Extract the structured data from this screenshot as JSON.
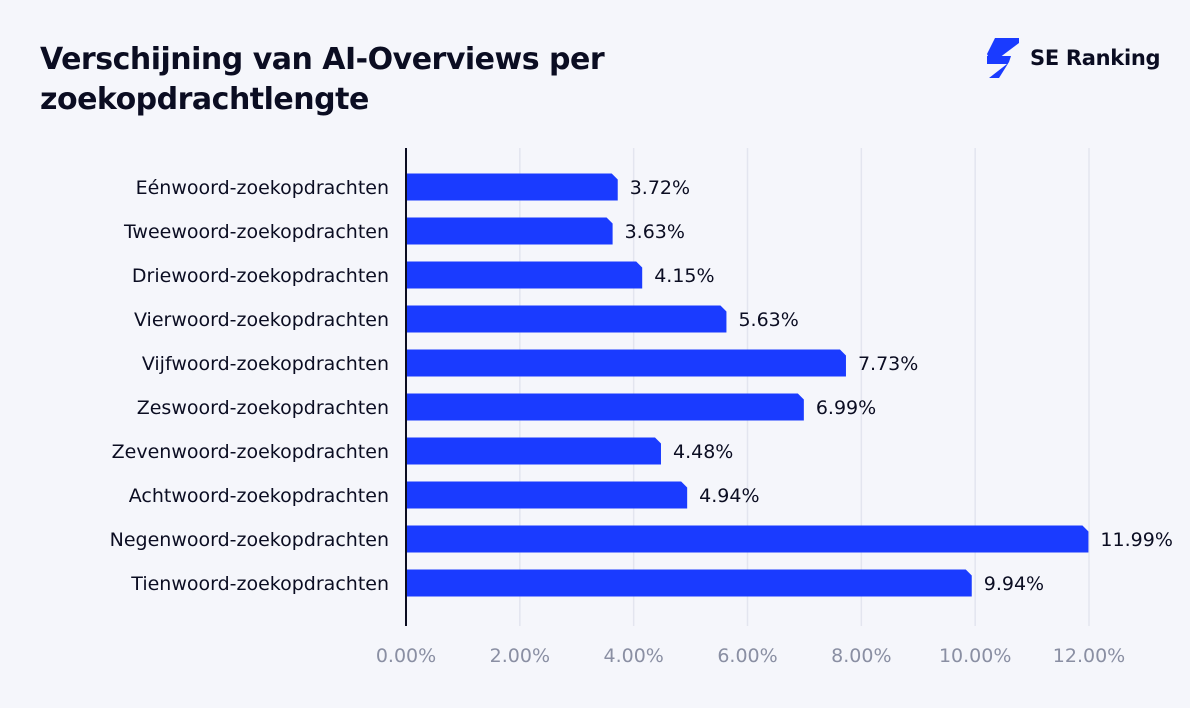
{
  "brand": {
    "name": "SE Ranking",
    "logo_icon": "se-ranking-bolt-icon",
    "logo_color": "#1a3bff"
  },
  "chart_data": {
    "type": "bar",
    "orientation": "horizontal",
    "title": "Verschijning van AI-Overviews per zoekopdrachtlengte",
    "xlabel": "",
    "ylabel": "",
    "categories": [
      "Eénwoord-zoekopdrachten",
      "Tweewoord-zoekopdrachten",
      "Driewoord-zoekopdrachten",
      "Vierwoord-zoekopdrachten",
      "Vijfwoord-zoekopdrachten",
      "Zeswoord-zoekopdrachten",
      "Zevenwoord-zoekopdrachten",
      "Achtwoord-zoekopdrachten",
      "Negenwoord-zoekopdrachten",
      "Tienwoord-zoekopdrachten"
    ],
    "values": [
      3.72,
      3.63,
      4.15,
      5.63,
      7.73,
      6.99,
      4.48,
      4.94,
      11.99,
      9.94
    ],
    "value_labels": [
      "3.72%",
      "3.63%",
      "4.15%",
      "5.63%",
      "7.73%",
      "6.99%",
      "4.48%",
      "4.94%",
      "11.99%",
      "9.94%"
    ],
    "xlim": [
      0,
      12
    ],
    "x_ticks": [
      0,
      2,
      4,
      6,
      8,
      10,
      12
    ],
    "x_tick_labels": [
      "0.00%",
      "2.00%",
      "4.00%",
      "6.00%",
      "8.00%",
      "10.00%",
      "12.00%"
    ],
    "grid": true,
    "legend": "none",
    "bar_color": "#1a3bff",
    "grid_color": "#e3e5ef",
    "axis_color": "#0b0d22"
  }
}
